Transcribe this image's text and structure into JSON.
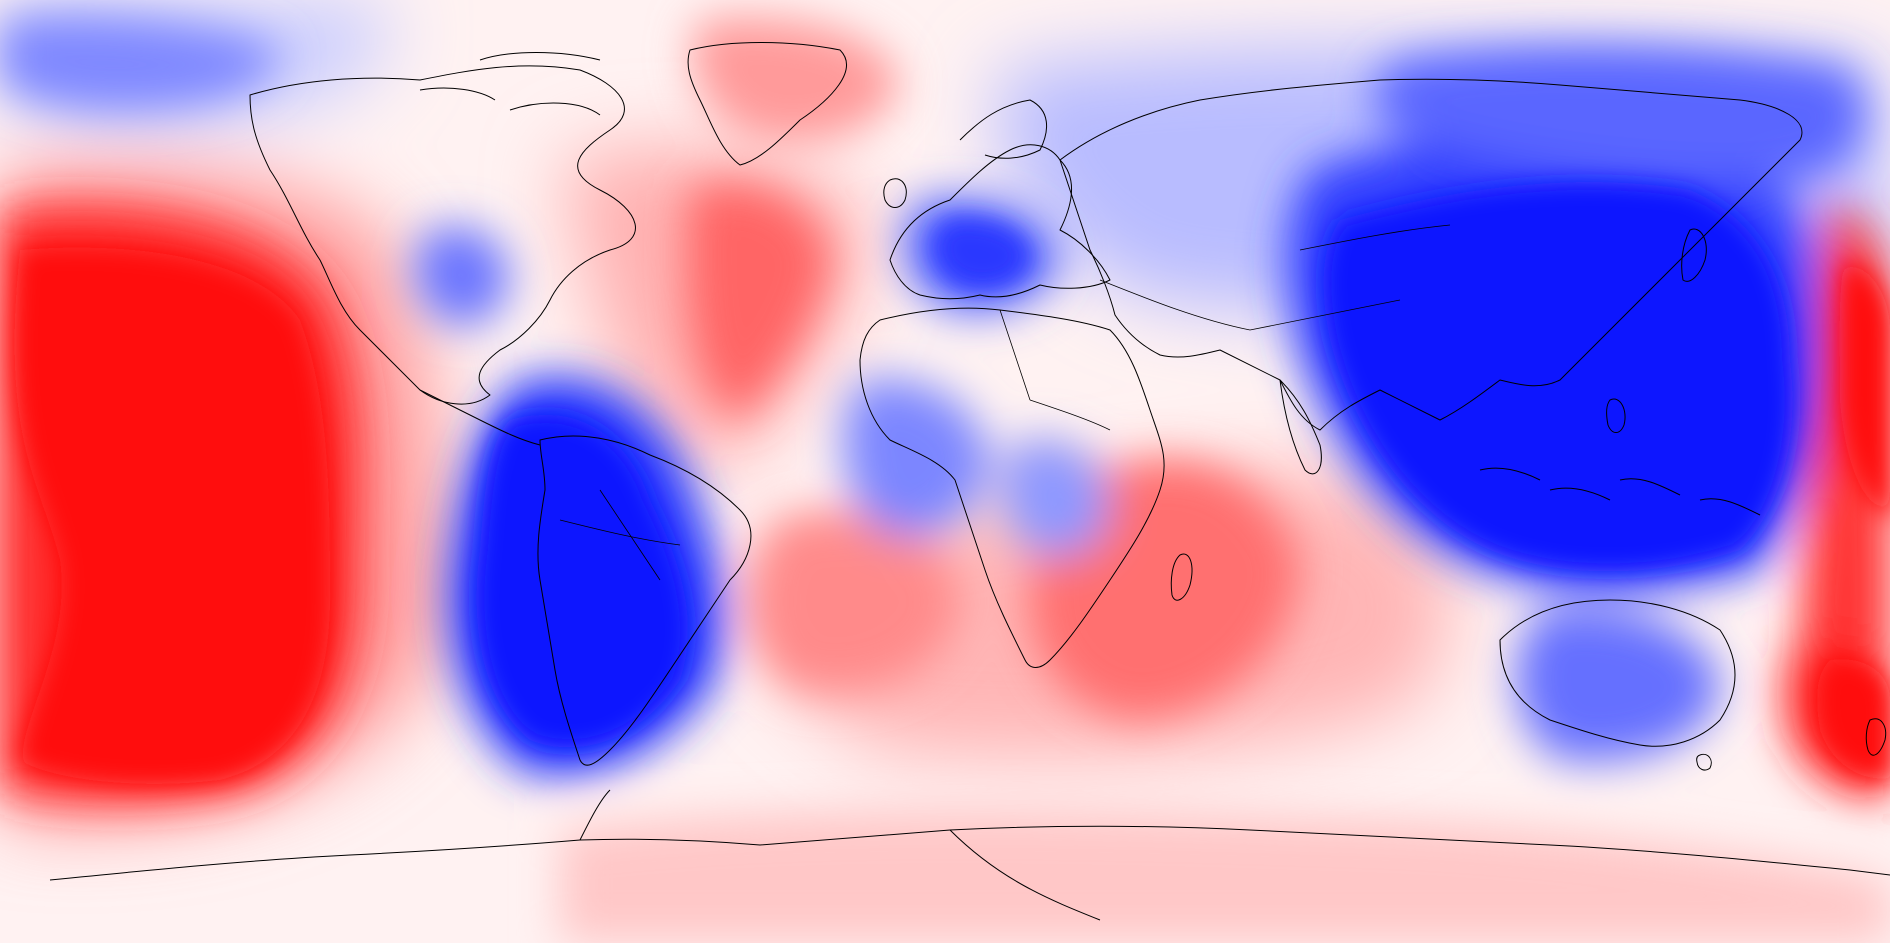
{
  "map": {
    "projection": "equirectangular",
    "colormap": {
      "low": "#0000ff",
      "mid": "#ffffff",
      "high": "#ff0000"
    },
    "outline_color": "#000000",
    "anomaly_fields": {
      "negative": [
        "west-pacific-asia-maritime",
        "south-america",
        "central-europe",
        "northeast-pacific",
        "east-asia-siberia",
        "australia-south",
        "north-atlantic-arctic",
        "west-africa"
      ],
      "positive": [
        "central-pacific",
        "north-atlantic",
        "indian-ocean",
        "south-atlantic",
        "southwest-pacific",
        "greenland"
      ]
    }
  }
}
